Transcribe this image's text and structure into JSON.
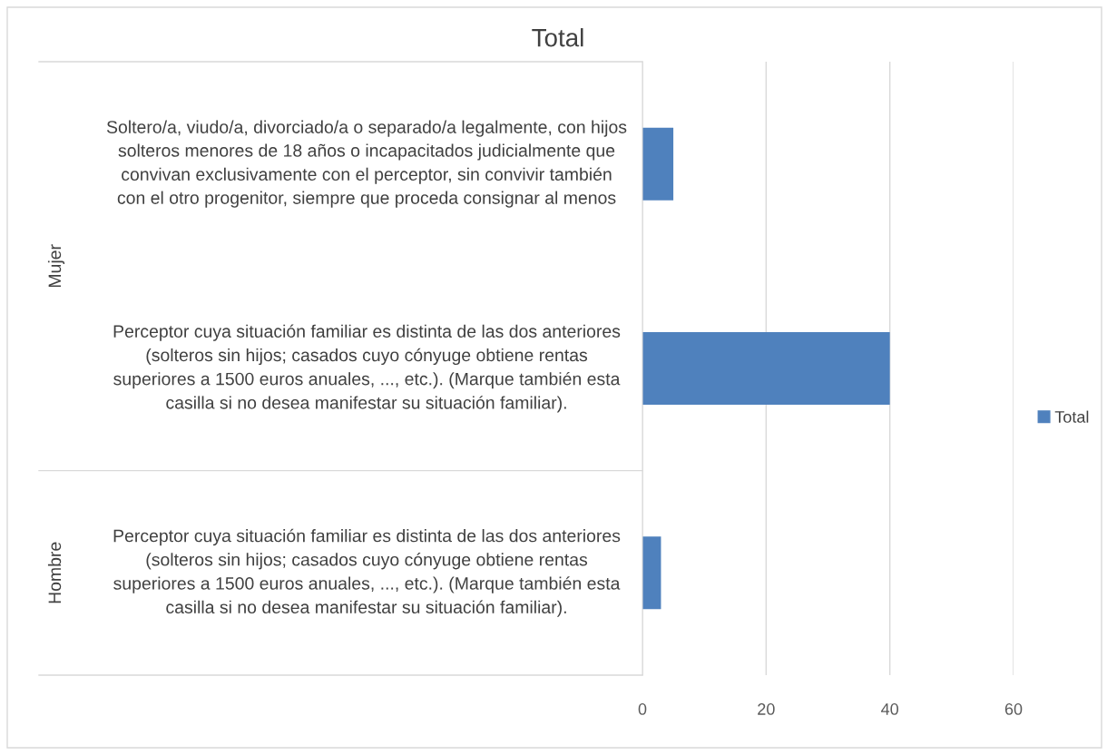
{
  "chart_data": {
    "type": "bar",
    "orientation": "horizontal",
    "title": "Total",
    "categories": [
      "Soltero/a, viudo/a, divorciado/a o separado/a legalmente, con hijos solteros menores de 18 años o incapacitados judicialmente que convivan exclusivamente con el perceptor, sin convivir también con el otro progenitor, siempre que proceda consignar al menos",
      "Perceptor cuya situación familiar es distinta de las dos anteriores (solteros sin hijos; casados cuyo cónyuge obtiene rentas superiores a 1500 euros anuales, ..., etc.). (Marque también esta casilla si no desea manifestar su situación familiar).",
      "Perceptor cuya situación familiar es distinta de las dos anteriores (solteros sin hijos; casados cuyo cónyuge obtiene rentas superiores a 1500 euros anuales, ..., etc.). (Marque también esta casilla si no desea manifestar su situación familiar)."
    ],
    "series": [
      {
        "name": "Total",
        "color": "#4f81bd",
        "values": [
          5,
          40,
          3
        ]
      }
    ],
    "annotations": [
      "Mujer",
      "Hombre"
    ],
    "xlim": [
      0,
      60
    ],
    "xticks": [
      0,
      20,
      40,
      60
    ],
    "grid": "x",
    "legend": "right"
  }
}
